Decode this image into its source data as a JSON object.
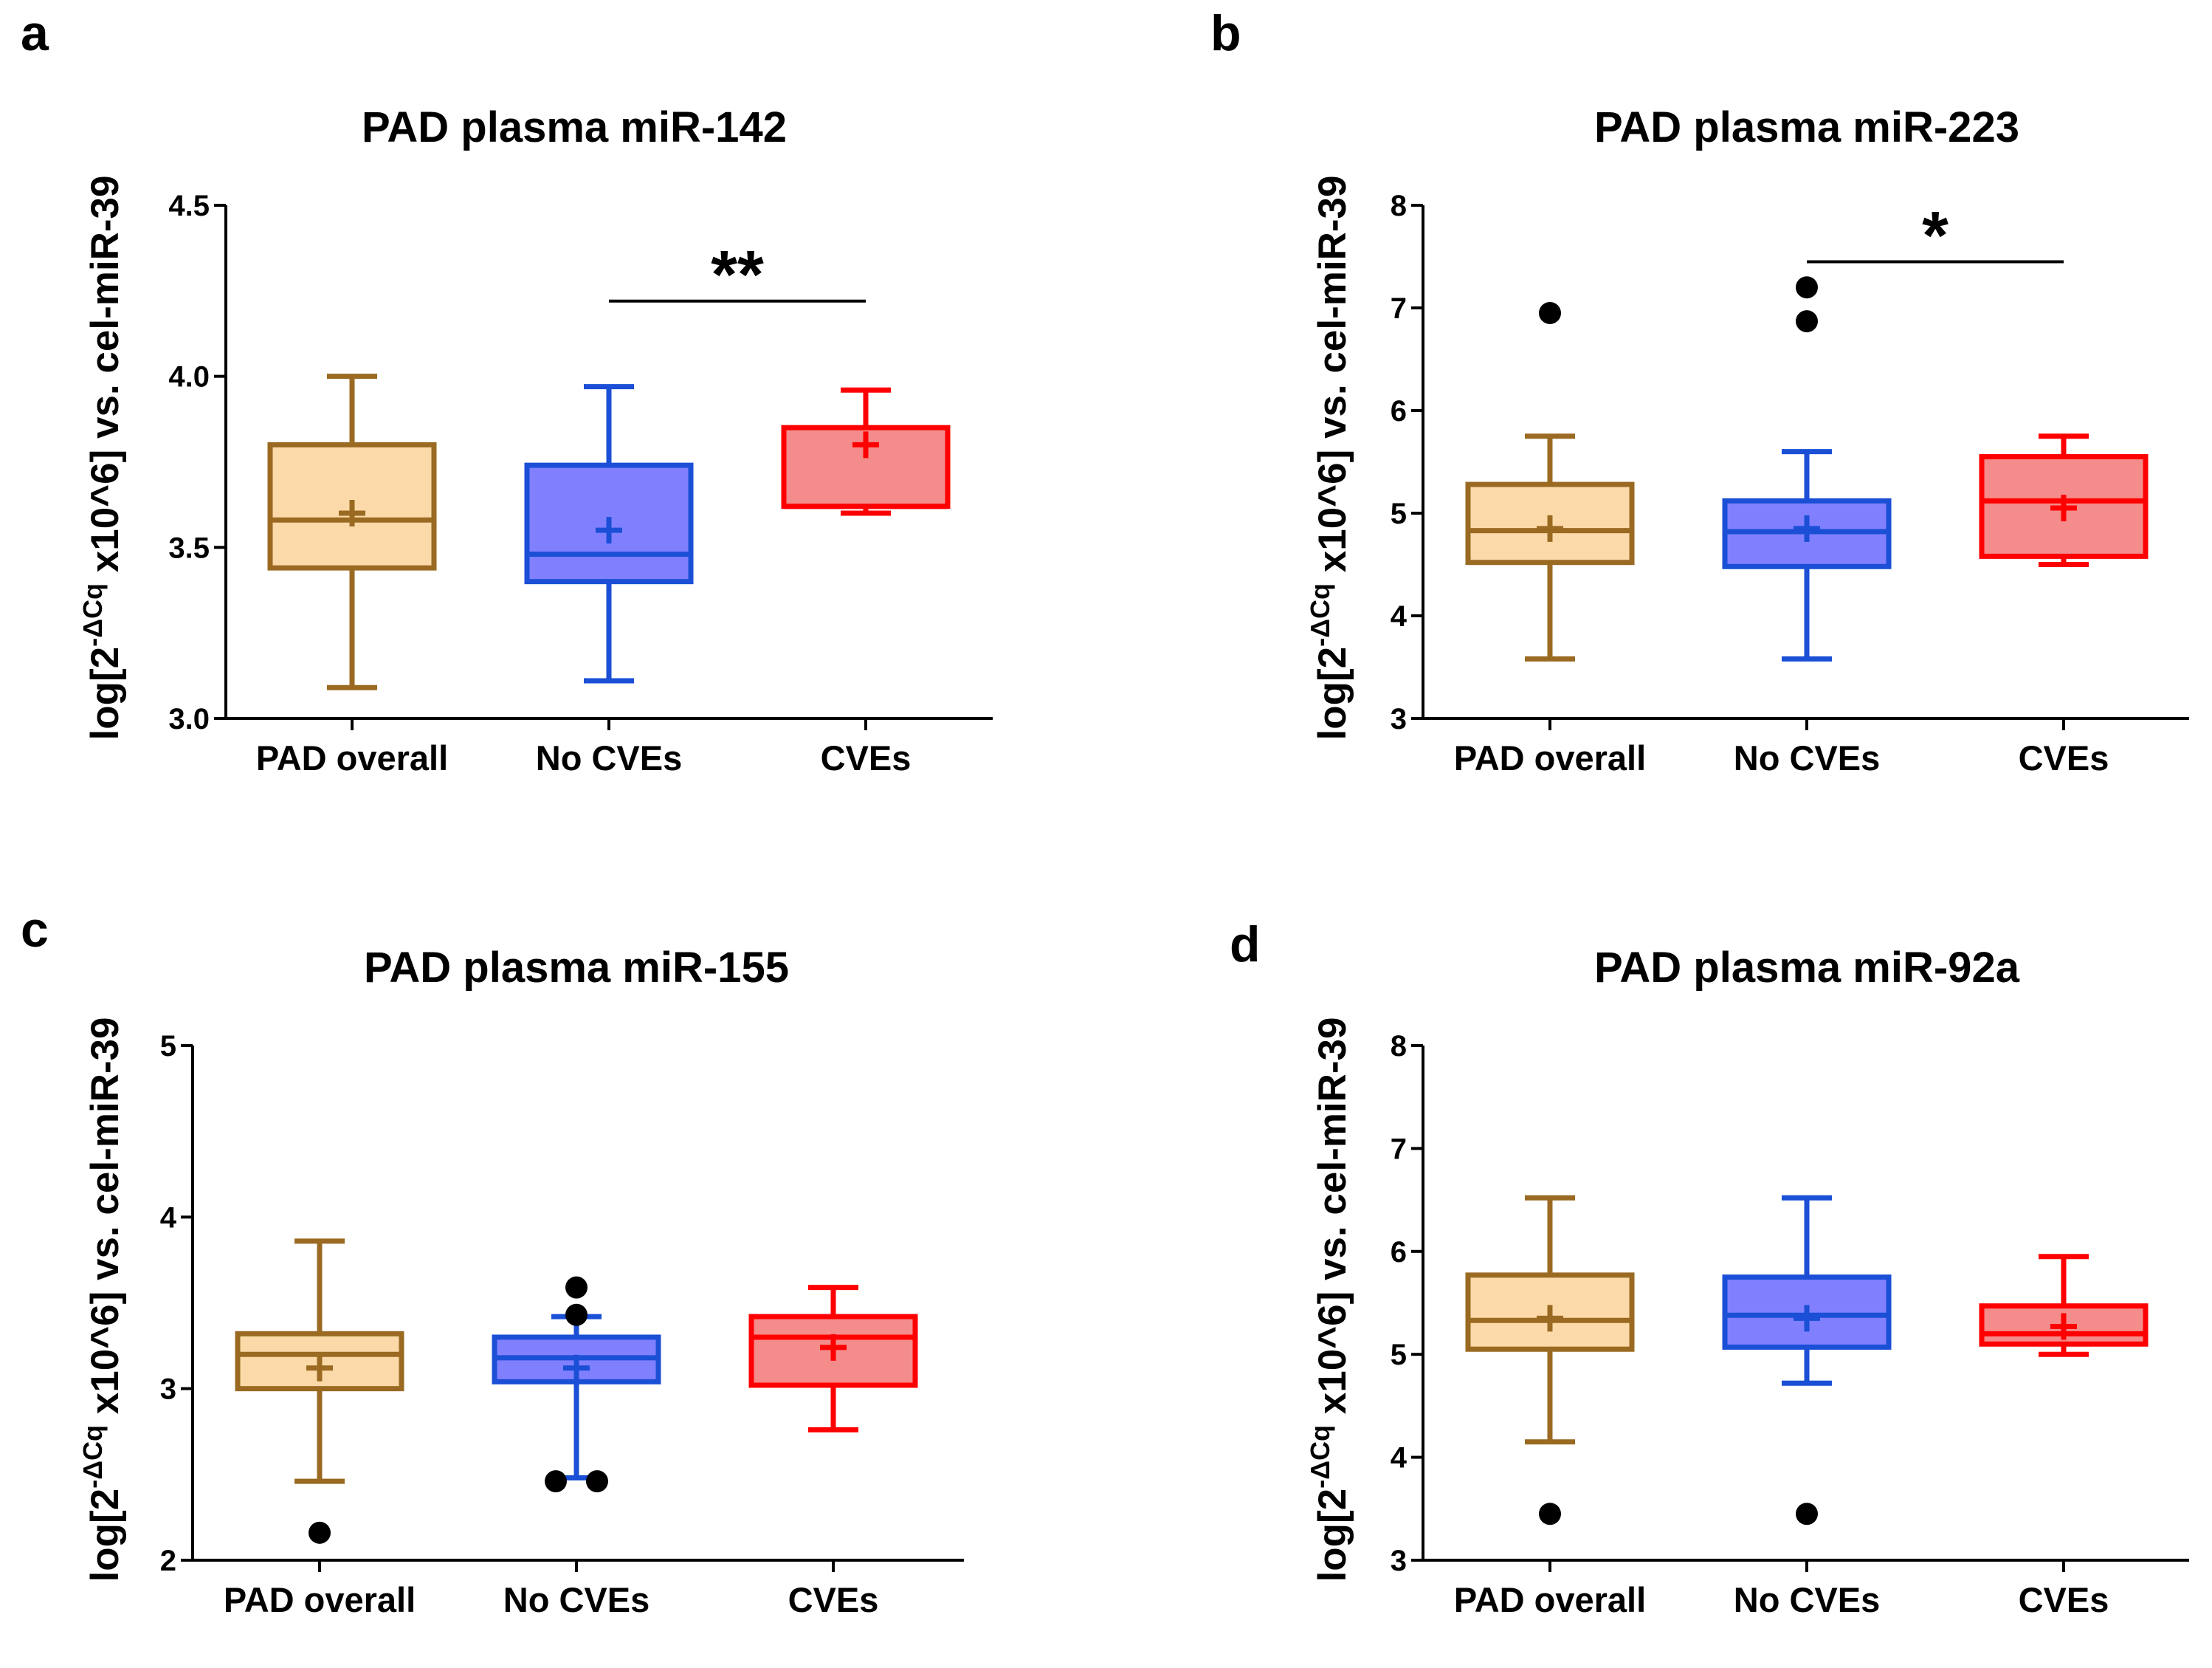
{
  "figure": {
    "colors": {
      "PAD overall": {
        "stroke": "#9a6a22",
        "fill": "#fcd9a8"
      },
      "No CVEs": {
        "stroke": "#1a4fd6",
        "fill": "#8080ff"
      },
      "CVEs": {
        "stroke": "#ff0000",
        "fill": "#f48c8c"
      },
      "outlier": "#000000"
    }
  },
  "chart_data": [
    {
      "panel": "a",
      "type": "boxplot",
      "title": "PAD plasma miR-142",
      "ylabel_parts": [
        "log[2",
        "-ΔCq",
        " x10^6] vs. cel-miR-39"
      ],
      "ylim": [
        3.0,
        4.5
      ],
      "yticks": [
        "3.0",
        "3.5",
        "4.0",
        "4.5"
      ],
      "categories": [
        "PAD overall",
        "No CVEs",
        "CVEs"
      ],
      "boxes": [
        {
          "category": "PAD overall",
          "whisker_low": 3.09,
          "q1": 3.44,
          "median": 3.58,
          "q3": 3.8,
          "whisker_high": 4.0,
          "mean": 3.6,
          "outliers": []
        },
        {
          "category": "No CVEs",
          "whisker_low": 3.11,
          "q1": 3.4,
          "median": 3.48,
          "q3": 3.74,
          "whisker_high": 3.97,
          "mean": 3.55,
          "outliers": []
        },
        {
          "category": "CVEs",
          "whisker_low": 3.6,
          "q1": 3.62,
          "median": 3.62,
          "q3": 3.85,
          "whisker_high": 3.96,
          "mean": 3.8,
          "outliers": []
        }
      ],
      "significance": {
        "from": "No CVEs",
        "to": "CVEs",
        "y": 4.22,
        "label": "**"
      }
    },
    {
      "panel": "b",
      "type": "boxplot",
      "title": "PAD plasma miR-223",
      "ylabel_parts": [
        "log[2",
        "-ΔCq",
        " x10^6] vs. cel-miR-39"
      ],
      "ylim": [
        3,
        8
      ],
      "yticks": [
        "3",
        "4",
        "5",
        "6",
        "7",
        "8"
      ],
      "categories": [
        "PAD overall",
        "No CVEs",
        "CVEs"
      ],
      "boxes": [
        {
          "category": "PAD overall",
          "whisker_low": 3.58,
          "q1": 4.52,
          "median": 4.83,
          "q3": 5.28,
          "whisker_high": 5.75,
          "mean": 4.85,
          "outliers": [
            6.95
          ]
        },
        {
          "category": "No CVEs",
          "whisker_low": 3.58,
          "q1": 4.48,
          "median": 4.82,
          "q3": 5.12,
          "whisker_high": 5.6,
          "mean": 4.85,
          "outliers": [
            7.2,
            6.87
          ]
        },
        {
          "category": "CVEs",
          "whisker_low": 4.5,
          "q1": 4.58,
          "median": 5.12,
          "q3": 5.55,
          "whisker_high": 5.75,
          "mean": 5.05,
          "outliers": []
        }
      ],
      "significance": {
        "from": "No CVEs",
        "to": "CVEs",
        "y": 7.45,
        "label": "*"
      }
    },
    {
      "panel": "c",
      "type": "boxplot",
      "title": "PAD plasma miR-155",
      "ylabel_parts": [
        "log[2",
        "-ΔCq",
        " x10^6] vs. cel-miR-39"
      ],
      "ylim": [
        2,
        5
      ],
      "yticks": [
        "2",
        "3",
        "4",
        "5"
      ],
      "categories": [
        "PAD overall",
        "No CVEs",
        "CVEs"
      ],
      "boxes": [
        {
          "category": "PAD overall",
          "whisker_low": 2.46,
          "q1": 3.0,
          "median": 3.2,
          "q3": 3.32,
          "whisker_high": 3.86,
          "mean": 3.12,
          "outliers": [
            2.16
          ]
        },
        {
          "category": "No CVEs",
          "whisker_low": 2.48,
          "q1": 3.04,
          "median": 3.18,
          "q3": 3.3,
          "whisker_high": 3.42,
          "mean": 3.12,
          "outliers": [
            3.59,
            3.43,
            2.46
          ]
        },
        {
          "category": "CVEs",
          "whisker_low": 2.76,
          "q1": 3.02,
          "median": 3.3,
          "q3": 3.42,
          "whisker_high": 3.59,
          "mean": 3.24,
          "outliers": []
        }
      ],
      "significance": null
    },
    {
      "panel": "d",
      "type": "boxplot",
      "title": "PAD plasma miR-92a",
      "ylabel_parts": [
        "log[2",
        "-ΔCq",
        " x10^6] vs. cel-miR-39"
      ],
      "ylim": [
        3,
        8
      ],
      "yticks": [
        "3",
        "4",
        "5",
        "6",
        "7",
        "8"
      ],
      "categories": [
        "PAD overall",
        "No CVEs",
        "CVEs"
      ],
      "boxes": [
        {
          "category": "PAD overall",
          "whisker_low": 4.15,
          "q1": 5.05,
          "median": 5.33,
          "q3": 5.77,
          "whisker_high": 6.52,
          "mean": 5.35,
          "outliers": [
            3.45
          ]
        },
        {
          "category": "No CVEs",
          "whisker_low": 4.72,
          "q1": 5.07,
          "median": 5.38,
          "q3": 5.75,
          "whisker_high": 6.52,
          "mean": 5.35,
          "outliers": [
            3.45
          ]
        },
        {
          "category": "CVEs",
          "whisker_low": 5.0,
          "q1": 5.1,
          "median": 5.2,
          "q3": 5.47,
          "whisker_high": 5.95,
          "mean": 5.27,
          "outliers": []
        }
      ],
      "significance": null
    }
  ]
}
